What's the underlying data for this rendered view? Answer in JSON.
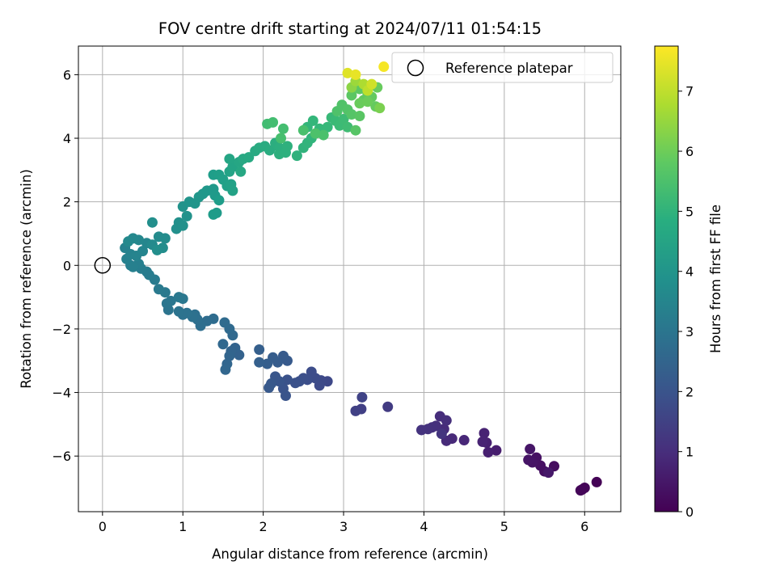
{
  "chart_data": {
    "type": "scatter",
    "title": "FOV centre drift starting at 2024/07/11 01:54:15",
    "xlabel": "Angular distance from reference (arcmin)",
    "ylabel": "Rotation from reference (arcmin)",
    "xlim": [
      -0.3,
      6.45
    ],
    "ylim": [
      -7.75,
      6.9
    ],
    "xticks": [
      0,
      1,
      2,
      3,
      4,
      5,
      6
    ],
    "yticks": [
      -6,
      -4,
      -2,
      0,
      2,
      4,
      6
    ],
    "grid": true,
    "legend": {
      "placement": "top-right",
      "entries": [
        "Reference platepar"
      ]
    },
    "reference_point": {
      "x": 0,
      "y": 0
    },
    "colorbar": {
      "label": "Hours from first FF file",
      "colormap": "viridis",
      "range": [
        0,
        7.75
      ],
      "ticks": [
        0,
        1,
        2,
        3,
        4,
        5,
        6,
        7
      ]
    },
    "series": [
      {
        "color_value_field": "hours",
        "points": [
          {
            "x": 6.15,
            "y": -6.82,
            "hours": 0.02
          },
          {
            "x": 5.97,
            "y": -7.05,
            "hours": 0.05
          },
          {
            "x": 6.0,
            "y": -7.0,
            "hours": 0.08
          },
          {
            "x": 5.95,
            "y": -7.08,
            "hours": 0.1
          },
          {
            "x": 5.62,
            "y": -6.32,
            "hours": 0.25
          },
          {
            "x": 5.5,
            "y": -6.48,
            "hours": 0.3
          },
          {
            "x": 5.45,
            "y": -6.3,
            "hours": 0.33
          },
          {
            "x": 5.4,
            "y": -6.05,
            "hours": 0.36
          },
          {
            "x": 5.35,
            "y": -6.2,
            "hours": 0.4
          },
          {
            "x": 5.3,
            "y": -6.12,
            "hours": 0.43
          },
          {
            "x": 5.32,
            "y": -5.78,
            "hours": 0.46
          },
          {
            "x": 5.55,
            "y": -6.52,
            "hours": 0.5
          },
          {
            "x": 4.9,
            "y": -5.82,
            "hours": 0.62
          },
          {
            "x": 4.8,
            "y": -5.88,
            "hours": 0.66
          },
          {
            "x": 4.78,
            "y": -5.58,
            "hours": 0.7
          },
          {
            "x": 4.75,
            "y": -5.28,
            "hours": 0.74
          },
          {
            "x": 4.73,
            "y": -5.55,
            "hours": 0.77
          },
          {
            "x": 4.5,
            "y": -5.5,
            "hours": 0.85
          },
          {
            "x": 4.35,
            "y": -5.45,
            "hours": 0.9
          },
          {
            "x": 4.28,
            "y": -5.52,
            "hours": 0.93
          },
          {
            "x": 4.25,
            "y": -5.15,
            "hours": 0.96
          },
          {
            "x": 4.2,
            "y": -4.75,
            "hours": 1.0
          },
          {
            "x": 4.28,
            "y": -4.88,
            "hours": 1.03
          },
          {
            "x": 4.15,
            "y": -5.05,
            "hours": 1.06
          },
          {
            "x": 4.1,
            "y": -5.1,
            "hours": 1.09
          },
          {
            "x": 4.05,
            "y": -5.15,
            "hours": 1.12
          },
          {
            "x": 3.97,
            "y": -5.18,
            "hours": 1.15
          },
          {
            "x": 4.22,
            "y": -5.3,
            "hours": 1.18
          },
          {
            "x": 3.55,
            "y": -4.45,
            "hours": 1.35
          },
          {
            "x": 3.22,
            "y": -4.52,
            "hours": 1.45
          },
          {
            "x": 3.15,
            "y": -4.58,
            "hours": 1.5
          },
          {
            "x": 3.23,
            "y": -4.15,
            "hours": 1.55
          },
          {
            "x": 2.8,
            "y": -3.65,
            "hours": 1.68
          },
          {
            "x": 2.72,
            "y": -3.62,
            "hours": 1.72
          },
          {
            "x": 2.7,
            "y": -3.78,
            "hours": 1.75
          },
          {
            "x": 2.65,
            "y": -3.55,
            "hours": 1.78
          },
          {
            "x": 2.6,
            "y": -3.35,
            "hours": 1.81
          },
          {
            "x": 2.55,
            "y": -3.6,
            "hours": 1.84
          },
          {
            "x": 2.5,
            "y": -3.55,
            "hours": 1.87
          },
          {
            "x": 2.45,
            "y": -3.65,
            "hours": 1.9
          },
          {
            "x": 2.4,
            "y": -3.7,
            "hours": 1.93
          },
          {
            "x": 2.3,
            "y": -3.6,
            "hours": 1.96
          },
          {
            "x": 2.25,
            "y": -3.88,
            "hours": 1.99
          },
          {
            "x": 2.28,
            "y": -4.1,
            "hours": 2.02
          },
          {
            "x": 2.2,
            "y": -3.65,
            "hours": 2.05
          },
          {
            "x": 2.15,
            "y": -3.5,
            "hours": 2.08
          },
          {
            "x": 2.1,
            "y": -3.72,
            "hours": 2.11
          },
          {
            "x": 2.07,
            "y": -3.85,
            "hours": 2.14
          },
          {
            "x": 2.3,
            "y": -3.0,
            "hours": 2.17
          },
          {
            "x": 2.25,
            "y": -2.85,
            "hours": 2.2
          },
          {
            "x": 2.18,
            "y": -3.05,
            "hours": 2.23
          },
          {
            "x": 2.12,
            "y": -2.9,
            "hours": 2.26
          },
          {
            "x": 2.05,
            "y": -3.1,
            "hours": 2.29
          },
          {
            "x": 1.95,
            "y": -2.65,
            "hours": 2.32
          },
          {
            "x": 1.95,
            "y": -3.05,
            "hours": 2.35
          },
          {
            "x": 1.7,
            "y": -2.82,
            "hours": 2.4
          },
          {
            "x": 1.65,
            "y": -2.6,
            "hours": 2.43
          },
          {
            "x": 1.6,
            "y": -2.7,
            "hours": 2.46
          },
          {
            "x": 1.58,
            "y": -2.85,
            "hours": 2.49
          },
          {
            "x": 1.55,
            "y": -3.1,
            "hours": 2.52
          },
          {
            "x": 1.53,
            "y": -3.28,
            "hours": 2.55
          },
          {
            "x": 1.5,
            "y": -2.48,
            "hours": 2.58
          },
          {
            "x": 1.62,
            "y": -2.2,
            "hours": 2.62
          },
          {
            "x": 1.58,
            "y": -2.0,
            "hours": 2.65
          },
          {
            "x": 1.52,
            "y": -1.8,
            "hours": 2.68
          },
          {
            "x": 1.38,
            "y": -1.68,
            "hours": 2.72
          },
          {
            "x": 1.3,
            "y": -1.75,
            "hours": 2.75
          },
          {
            "x": 1.22,
            "y": -1.9,
            "hours": 2.78
          },
          {
            "x": 1.18,
            "y": -1.7,
            "hours": 2.81
          },
          {
            "x": 1.15,
            "y": -1.55,
            "hours": 2.84
          },
          {
            "x": 1.12,
            "y": -1.62,
            "hours": 2.87
          },
          {
            "x": 1.05,
            "y": -1.5,
            "hours": 2.9
          },
          {
            "x": 1.0,
            "y": -1.55,
            "hours": 2.93
          },
          {
            "x": 0.95,
            "y": -1.45,
            "hours": 2.96
          },
          {
            "x": 0.82,
            "y": -1.4,
            "hours": 2.99
          },
          {
            "x": 0.8,
            "y": -1.2,
            "hours": 3.02
          },
          {
            "x": 0.85,
            "y": -1.12,
            "hours": 3.05
          },
          {
            "x": 1.0,
            "y": -1.05,
            "hours": 3.08
          },
          {
            "x": 0.95,
            "y": -1.0,
            "hours": 3.11
          },
          {
            "x": 0.78,
            "y": -0.85,
            "hours": 3.14
          },
          {
            "x": 0.7,
            "y": -0.75,
            "hours": 3.17
          },
          {
            "x": 0.65,
            "y": -0.45,
            "hours": 3.2
          },
          {
            "x": 0.58,
            "y": -0.3,
            "hours": 3.23
          },
          {
            "x": 0.55,
            "y": -0.2,
            "hours": 3.26
          },
          {
            "x": 0.48,
            "y": -0.1,
            "hours": 3.29
          },
          {
            "x": 0.35,
            "y": 0.0,
            "hours": 3.32
          },
          {
            "x": 0.45,
            "y": 0.05,
            "hours": 3.35
          },
          {
            "x": 0.38,
            "y": -0.05,
            "hours": 3.38
          },
          {
            "x": 0.3,
            "y": 0.2,
            "hours": 3.41
          },
          {
            "x": 0.28,
            "y": 0.55,
            "hours": 3.44
          },
          {
            "x": 0.35,
            "y": 0.35,
            "hours": 3.47
          },
          {
            "x": 0.42,
            "y": 0.3,
            "hours": 3.5
          },
          {
            "x": 0.5,
            "y": 0.45,
            "hours": 3.53
          },
          {
            "x": 0.55,
            "y": 0.7,
            "hours": 3.56
          },
          {
            "x": 0.45,
            "y": 0.8,
            "hours": 3.59
          },
          {
            "x": 0.38,
            "y": 0.85,
            "hours": 3.62
          },
          {
            "x": 0.32,
            "y": 0.75,
            "hours": 3.65
          },
          {
            "x": 0.62,
            "y": 0.65,
            "hours": 3.68
          },
          {
            "x": 0.7,
            "y": 0.9,
            "hours": 3.71
          },
          {
            "x": 0.78,
            "y": 0.85,
            "hours": 3.74
          },
          {
            "x": 0.75,
            "y": 0.55,
            "hours": 3.77
          },
          {
            "x": 0.68,
            "y": 0.48,
            "hours": 3.8
          },
          {
            "x": 0.62,
            "y": 1.35,
            "hours": 3.83
          },
          {
            "x": 0.92,
            "y": 1.15,
            "hours": 3.86
          },
          {
            "x": 0.95,
            "y": 1.35,
            "hours": 3.89
          },
          {
            "x": 1.0,
            "y": 1.25,
            "hours": 3.92
          },
          {
            "x": 1.05,
            "y": 1.55,
            "hours": 3.95
          },
          {
            "x": 1.0,
            "y": 1.85,
            "hours": 3.98
          },
          {
            "x": 1.08,
            "y": 2.0,
            "hours": 4.01
          },
          {
            "x": 1.15,
            "y": 1.95,
            "hours": 4.04
          },
          {
            "x": 1.2,
            "y": 2.15,
            "hours": 4.07
          },
          {
            "x": 1.25,
            "y": 2.25,
            "hours": 4.1
          },
          {
            "x": 1.3,
            "y": 2.35,
            "hours": 4.13
          },
          {
            "x": 1.38,
            "y": 2.4,
            "hours": 4.16
          },
          {
            "x": 1.4,
            "y": 2.2,
            "hours": 4.19
          },
          {
            "x": 1.42,
            "y": 1.65,
            "hours": 4.22
          },
          {
            "x": 1.38,
            "y": 1.6,
            "hours": 4.25
          },
          {
            "x": 1.45,
            "y": 2.05,
            "hours": 4.28
          },
          {
            "x": 1.38,
            "y": 2.85,
            "hours": 4.31
          },
          {
            "x": 1.45,
            "y": 2.85,
            "hours": 4.34
          },
          {
            "x": 1.5,
            "y": 2.7,
            "hours": 4.37
          },
          {
            "x": 1.55,
            "y": 2.5,
            "hours": 4.4
          },
          {
            "x": 1.6,
            "y": 2.55,
            "hours": 4.43
          },
          {
            "x": 1.62,
            "y": 2.35,
            "hours": 4.46
          },
          {
            "x": 1.58,
            "y": 2.95,
            "hours": 4.49
          },
          {
            "x": 1.62,
            "y": 3.1,
            "hours": 4.52
          },
          {
            "x": 1.58,
            "y": 3.35,
            "hours": 4.55
          },
          {
            "x": 1.7,
            "y": 3.25,
            "hours": 4.58
          },
          {
            "x": 1.72,
            "y": 2.95,
            "hours": 4.61
          },
          {
            "x": 1.75,
            "y": 3.35,
            "hours": 4.64
          },
          {
            "x": 1.82,
            "y": 3.4,
            "hours": 4.67
          },
          {
            "x": 1.9,
            "y": 3.6,
            "hours": 4.7
          },
          {
            "x": 1.95,
            "y": 3.7,
            "hours": 4.73
          },
          {
            "x": 2.02,
            "y": 3.75,
            "hours": 4.76
          },
          {
            "x": 2.08,
            "y": 3.62,
            "hours": 4.79
          },
          {
            "x": 2.15,
            "y": 3.85,
            "hours": 4.82
          },
          {
            "x": 2.2,
            "y": 3.7,
            "hours": 4.85
          },
          {
            "x": 2.2,
            "y": 3.5,
            "hours": 4.88
          },
          {
            "x": 2.28,
            "y": 3.55,
            "hours": 4.91
          },
          {
            "x": 2.3,
            "y": 3.75,
            "hours": 4.94
          },
          {
            "x": 2.42,
            "y": 3.45,
            "hours": 4.97
          },
          {
            "x": 2.5,
            "y": 3.7,
            "hours": 5.0
          },
          {
            "x": 2.55,
            "y": 3.85,
            "hours": 5.03
          },
          {
            "x": 2.6,
            "y": 4.0,
            "hours": 5.06
          },
          {
            "x": 2.55,
            "y": 4.35,
            "hours": 5.09
          },
          {
            "x": 2.62,
            "y": 4.55,
            "hours": 5.12
          },
          {
            "x": 2.7,
            "y": 4.3,
            "hours": 5.15
          },
          {
            "x": 2.8,
            "y": 4.35,
            "hours": 5.18
          },
          {
            "x": 2.85,
            "y": 4.65,
            "hours": 5.21
          },
          {
            "x": 2.9,
            "y": 4.55,
            "hours": 5.24
          },
          {
            "x": 2.95,
            "y": 4.4,
            "hours": 5.27
          },
          {
            "x": 3.0,
            "y": 4.6,
            "hours": 5.3
          },
          {
            "x": 3.05,
            "y": 4.35,
            "hours": 5.33
          },
          {
            "x": 2.05,
            "y": 4.45,
            "hours": 5.36
          },
          {
            "x": 2.12,
            "y": 4.5,
            "hours": 5.39
          },
          {
            "x": 2.25,
            "y": 4.3,
            "hours": 5.42
          },
          {
            "x": 2.22,
            "y": 4.0,
            "hours": 5.45
          },
          {
            "x": 2.5,
            "y": 4.25,
            "hours": 5.48
          },
          {
            "x": 2.75,
            "y": 4.1,
            "hours": 5.51
          },
          {
            "x": 2.65,
            "y": 4.15,
            "hours": 5.54
          },
          {
            "x": 2.92,
            "y": 4.85,
            "hours": 5.57
          },
          {
            "x": 2.98,
            "y": 5.05,
            "hours": 5.6
          },
          {
            "x": 3.05,
            "y": 4.9,
            "hours": 5.63
          },
          {
            "x": 3.1,
            "y": 4.75,
            "hours": 5.66
          },
          {
            "x": 3.15,
            "y": 4.25,
            "hours": 5.69
          },
          {
            "x": 3.2,
            "y": 4.7,
            "hours": 5.72
          },
          {
            "x": 3.1,
            "y": 5.35,
            "hours": 5.75
          },
          {
            "x": 3.2,
            "y": 5.55,
            "hours": 5.78
          },
          {
            "x": 3.25,
            "y": 5.2,
            "hours": 5.81
          },
          {
            "x": 3.3,
            "y": 5.4,
            "hours": 5.84
          },
          {
            "x": 3.35,
            "y": 5.3,
            "hours": 5.87
          },
          {
            "x": 3.4,
            "y": 5.0,
            "hours": 5.9
          },
          {
            "x": 3.42,
            "y": 5.6,
            "hours": 5.93
          },
          {
            "x": 3.2,
            "y": 5.1,
            "hours": 5.96
          },
          {
            "x": 3.3,
            "y": 5.15,
            "hours": 5.99
          },
          {
            "x": 3.45,
            "y": 4.95,
            "hours": 6.2
          },
          {
            "x": 3.1,
            "y": 5.6,
            "hours": 6.4
          },
          {
            "x": 3.15,
            "y": 5.8,
            "hours": 6.6
          },
          {
            "x": 3.25,
            "y": 5.7,
            "hours": 6.8
          },
          {
            "x": 3.3,
            "y": 5.5,
            "hours": 7.0
          },
          {
            "x": 3.35,
            "y": 5.7,
            "hours": 7.2
          },
          {
            "x": 3.05,
            "y": 6.05,
            "hours": 7.4
          },
          {
            "x": 3.15,
            "y": 6.0,
            "hours": 7.5
          },
          {
            "x": 3.5,
            "y": 6.25,
            "hours": 7.65
          }
        ]
      }
    ]
  }
}
